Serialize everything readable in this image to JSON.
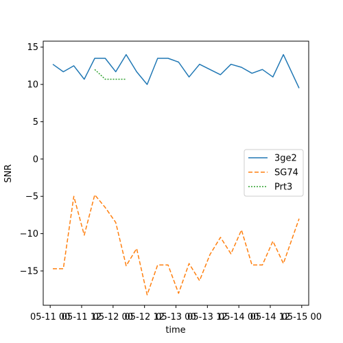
{
  "chart_data": {
    "type": "line",
    "xlabel": "time",
    "ylabel": "SNR",
    "x_ticks": [
      "05-11 00",
      "05-11 12",
      "05-12 00",
      "05-12 12",
      "05-13 00",
      "05-13 12",
      "05-14 00",
      "05-14 12",
      "05-15 00"
    ],
    "y_ticks": [
      "15",
      "10",
      "5",
      "0",
      "−5",
      "−10",
      "−15"
    ],
    "y_tick_values": [
      15,
      10,
      5,
      0,
      -5,
      -10,
      -15
    ],
    "xlim": [
      "2021-05-10T21:20",
      "2021-05-15T02:40"
    ],
    "ylim": [
      -19.6,
      15.8
    ],
    "legend_position": "center-right",
    "grid": false,
    "series": [
      {
        "name": "3ge2",
        "color": "#1f77b4",
        "dash": "solid",
        "points": [
          [
            "2021-05-11T01:00",
            12.7
          ],
          [
            "2021-05-11T05:00",
            11.7
          ],
          [
            "2021-05-11T09:00",
            12.5
          ],
          [
            "2021-05-11T13:00",
            10.7
          ],
          [
            "2021-05-11T17:00",
            13.5
          ],
          [
            "2021-05-11T21:00",
            13.5
          ],
          [
            "2021-05-12T01:00",
            11.7
          ],
          [
            "2021-05-12T05:00",
            14.0
          ],
          [
            "2021-05-12T09:00",
            11.7
          ],
          [
            "2021-05-12T13:00",
            10.0
          ],
          [
            "2021-05-12T17:00",
            13.5
          ],
          [
            "2021-05-12T21:00",
            13.5
          ],
          [
            "2021-05-13T01:00",
            13.0
          ],
          [
            "2021-05-13T05:00",
            11.0
          ],
          [
            "2021-05-13T09:00",
            12.7
          ],
          [
            "2021-05-13T13:00",
            12.0
          ],
          [
            "2021-05-13T17:00",
            11.3
          ],
          [
            "2021-05-13T21:00",
            12.7
          ],
          [
            "2021-05-14T01:00",
            12.3
          ],
          [
            "2021-05-14T05:00",
            11.5
          ],
          [
            "2021-05-14T09:00",
            12.0
          ],
          [
            "2021-05-14T13:00",
            11.0
          ],
          [
            "2021-05-14T17:00",
            14.0
          ],
          [
            "2021-05-14T23:00",
            9.5
          ]
        ]
      },
      {
        "name": "SG74",
        "color": "#ff7f0e",
        "dash": "dashed",
        "points": [
          [
            "2021-05-11T01:00",
            -14.7
          ],
          [
            "2021-05-11T05:00",
            -14.7
          ],
          [
            "2021-05-11T09:00",
            -5.0
          ],
          [
            "2021-05-11T13:00",
            -10.2
          ],
          [
            "2021-05-11T17:00",
            -4.8
          ],
          [
            "2021-05-11T21:00",
            -6.5
          ],
          [
            "2021-05-12T01:00",
            -8.5
          ],
          [
            "2021-05-12T05:00",
            -14.3
          ],
          [
            "2021-05-12T09:00",
            -12.0
          ],
          [
            "2021-05-12T13:00",
            -18.2
          ],
          [
            "2021-05-12T17:00",
            -14.2
          ],
          [
            "2021-05-12T21:00",
            -14.2
          ],
          [
            "2021-05-13T01:00",
            -18.0
          ],
          [
            "2021-05-13T05:00",
            -14.0
          ],
          [
            "2021-05-13T09:00",
            -16.3
          ],
          [
            "2021-05-13T13:00",
            -12.8
          ],
          [
            "2021-05-13T17:00",
            -10.5
          ],
          [
            "2021-05-13T21:00",
            -12.7
          ],
          [
            "2021-05-14T01:00",
            -9.5
          ],
          [
            "2021-05-14T05:00",
            -14.2
          ],
          [
            "2021-05-14T09:00",
            -14.2
          ],
          [
            "2021-05-14T13:00",
            -11.0
          ],
          [
            "2021-05-14T17:00",
            -14.0
          ],
          [
            "2021-05-14T23:00",
            -8.0
          ]
        ]
      },
      {
        "name": "Prt3",
        "color": "#2ca02c",
        "dash": "dotted",
        "points": [
          [
            "2021-05-11T17:00",
            12.0
          ],
          [
            "2021-05-11T21:00",
            10.7
          ],
          [
            "2021-05-12T01:00",
            10.7
          ],
          [
            "2021-05-12T05:00",
            10.7
          ]
        ]
      }
    ]
  }
}
